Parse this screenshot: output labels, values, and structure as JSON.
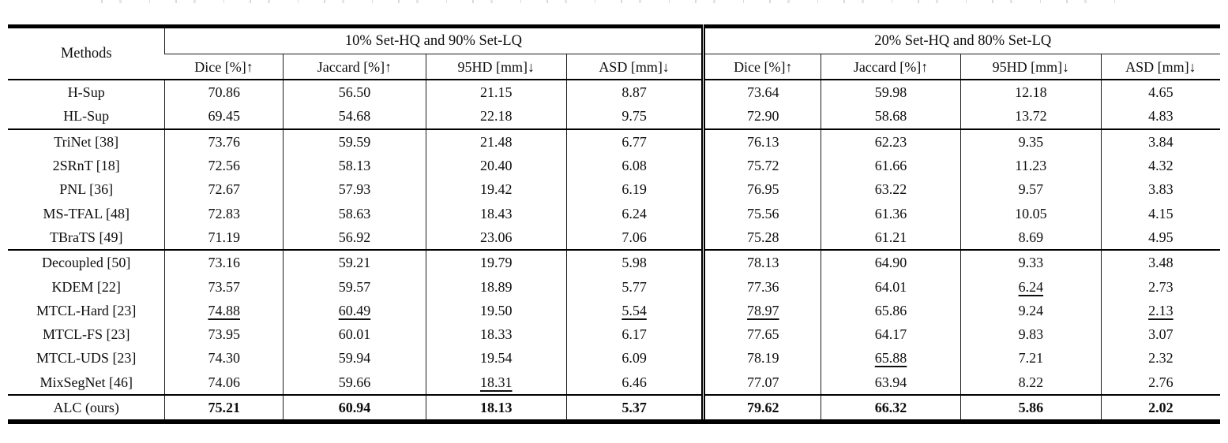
{
  "colors": {
    "text": "#0e0e0e",
    "thin_rule": "#1c1c1c",
    "thick_rule": "#000000",
    "background": "#ffffff"
  },
  "table": {
    "methods_header": "Methods",
    "group_headers": [
      "10% Set-HQ and 90% Set-LQ",
      "20% Set-HQ and 80% Set-LQ"
    ],
    "metric_headers": [
      "Dice [%]↑",
      "Jaccard [%]↑",
      "95HD [mm]↓",
      "ASD [mm]↓"
    ],
    "rows": [
      {
        "method": "H-Sup",
        "values": [
          "70.86",
          "56.50",
          "21.15",
          "8.87",
          "73.64",
          "59.98",
          "12.18",
          "4.65"
        ],
        "underlined": [],
        "bold": false,
        "sep_before": false
      },
      {
        "method": "HL-Sup",
        "values": [
          "69.45",
          "54.68",
          "22.18",
          "9.75",
          "72.90",
          "58.68",
          "13.72",
          "4.83"
        ],
        "underlined": [],
        "bold": false,
        "sep_before": false
      },
      {
        "method": "TriNet [38]",
        "values": [
          "73.76",
          "59.59",
          "21.48",
          "6.77",
          "76.13",
          "62.23",
          "9.35",
          "3.84"
        ],
        "underlined": [],
        "bold": false,
        "sep_before": true
      },
      {
        "method": "2SRnT [18]",
        "values": [
          "72.56",
          "58.13",
          "20.40",
          "6.08",
          "75.72",
          "61.66",
          "11.23",
          "4.32"
        ],
        "underlined": [],
        "bold": false,
        "sep_before": false
      },
      {
        "method": "PNL [36]",
        "values": [
          "72.67",
          "57.93",
          "19.42",
          "6.19",
          "76.95",
          "63.22",
          "9.57",
          "3.83"
        ],
        "underlined": [],
        "bold": false,
        "sep_before": false
      },
      {
        "method": "MS-TFAL [48]",
        "values": [
          "72.83",
          "58.63",
          "18.43",
          "6.24",
          "75.56",
          "61.36",
          "10.05",
          "4.15"
        ],
        "underlined": [],
        "bold": false,
        "sep_before": false
      },
      {
        "method": "TBraTS [49]",
        "values": [
          "71.19",
          "56.92",
          "23.06",
          "7.06",
          "75.28",
          "61.21",
          "8.69",
          "4.95"
        ],
        "underlined": [],
        "bold": false,
        "sep_before": false
      },
      {
        "method": "Decoupled [50]",
        "values": [
          "73.16",
          "59.21",
          "19.79",
          "5.98",
          "78.13",
          "64.90",
          "9.33",
          "3.48"
        ],
        "underlined": [],
        "bold": false,
        "sep_before": true
      },
      {
        "method": "KDEM [22]",
        "values": [
          "73.57",
          "59.57",
          "18.89",
          "5.77",
          "77.36",
          "64.01",
          "6.24",
          "2.73"
        ],
        "underlined": [
          6
        ],
        "bold": false,
        "sep_before": false
      },
      {
        "method": "MTCL-Hard [23]",
        "values": [
          "74.88",
          "60.49",
          "19.50",
          "5.54",
          "78.97",
          "65.86",
          "9.24",
          "2.13"
        ],
        "underlined": [
          0,
          1,
          3,
          4,
          7
        ],
        "bold": false,
        "sep_before": false
      },
      {
        "method": "MTCL-FS [23]",
        "values": [
          "73.95",
          "60.01",
          "18.33",
          "6.17",
          "77.65",
          "64.17",
          "9.83",
          "3.07"
        ],
        "underlined": [],
        "bold": false,
        "sep_before": false
      },
      {
        "method": "MTCL-UDS [23]",
        "values": [
          "74.30",
          "59.94",
          "19.54",
          "6.09",
          "78.19",
          "65.88",
          "7.21",
          "2.32"
        ],
        "underlined": [
          5
        ],
        "bold": false,
        "sep_before": false
      },
      {
        "method": "MixSegNet [46]",
        "values": [
          "74.06",
          "59.66",
          "18.31",
          "6.46",
          "77.07",
          "63.94",
          "8.22",
          "2.76"
        ],
        "underlined": [
          2
        ],
        "bold": false,
        "sep_before": false
      },
      {
        "method": "ALC (ours)",
        "values": [
          "75.21",
          "60.94",
          "18.13",
          "5.37",
          "79.62",
          "66.32",
          "5.86",
          "2.02"
        ],
        "underlined": [],
        "bold": true,
        "sep_before": true
      }
    ]
  }
}
